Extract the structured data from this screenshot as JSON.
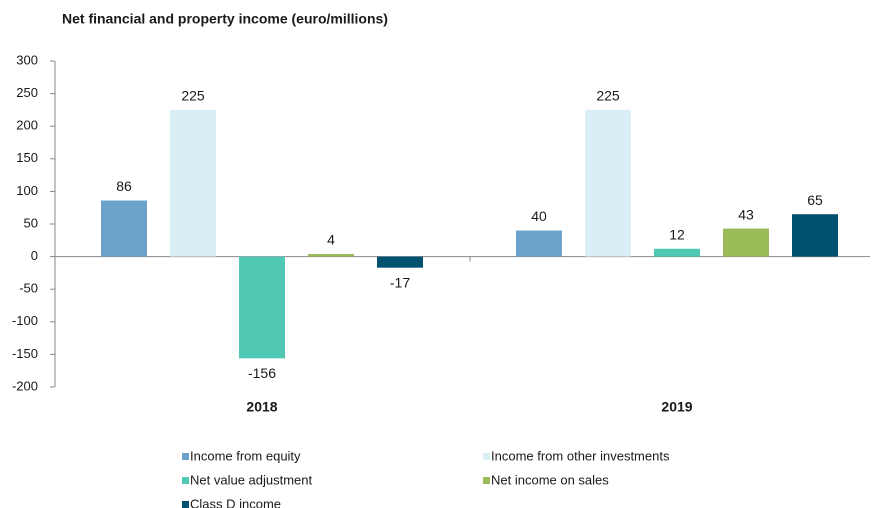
{
  "chart_data": {
    "type": "bar",
    "title": "Net financial and property income (euro/millions)",
    "categories": [
      "2018",
      "2019"
    ],
    "series": [
      {
        "name": "Income from equity",
        "color": "#6ba3cc",
        "values": [
          86,
          40
        ]
      },
      {
        "name": "Income from other investments",
        "color": "#daeef5",
        "values": [
          225,
          225
        ]
      },
      {
        "name": "Net value adjustment",
        "color": "#4fc9b4",
        "values": [
          -156,
          12
        ]
      },
      {
        "name": "Net income on sales",
        "color": "#9bbb59",
        "values": [
          4,
          43
        ]
      },
      {
        "name": "Class D income",
        "color": "#00506f",
        "values": [
          -17,
          65
        ]
      }
    ],
    "ylim": [
      -200,
      300
    ],
    "yticks": [
      -200,
      -150,
      -100,
      -50,
      0,
      50,
      100,
      150,
      200,
      250,
      300
    ],
    "legend": "bottom"
  }
}
